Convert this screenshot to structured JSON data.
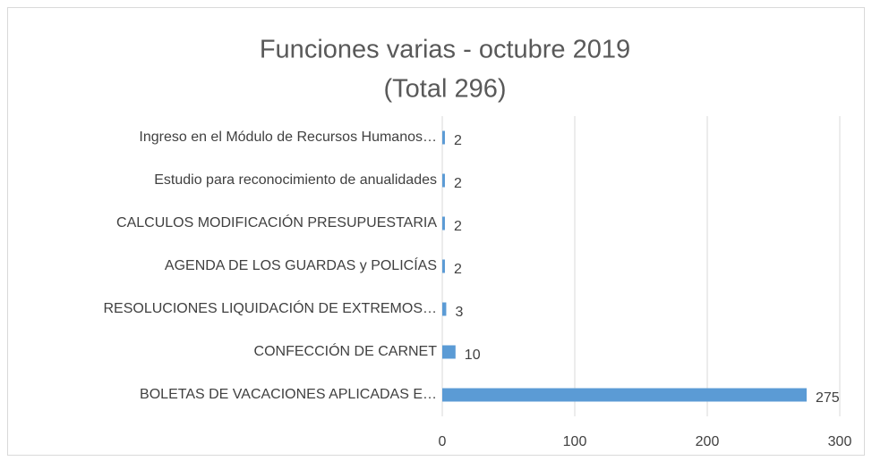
{
  "chart_data": {
    "type": "bar",
    "orientation": "horizontal",
    "title": "Funciones varias - octubre 2019",
    "subtitle": "(Total 296)",
    "categories": [
      "Ingreso en el Módulo de Recursos Humanos…",
      "Estudio para reconocimiento de anualidades",
      "CALCULOS MODIFICACIÓN PRESUPUESTARIA",
      "AGENDA DE LOS GUARDAS y  POLICÍAS",
      "RESOLUCIONES LIQUIDACIÓN DE EXTREMOS…",
      "CONFECCIÓN DE CARNET",
      "BOLETAS DE VACACIONES APLICADAS E…"
    ],
    "values": [
      2,
      2,
      2,
      2,
      3,
      10,
      275
    ],
    "color": "#5b9bd5",
    "xlim": [
      0,
      300
    ],
    "xticks": [
      0,
      100,
      200,
      300
    ],
    "grid": true
  }
}
